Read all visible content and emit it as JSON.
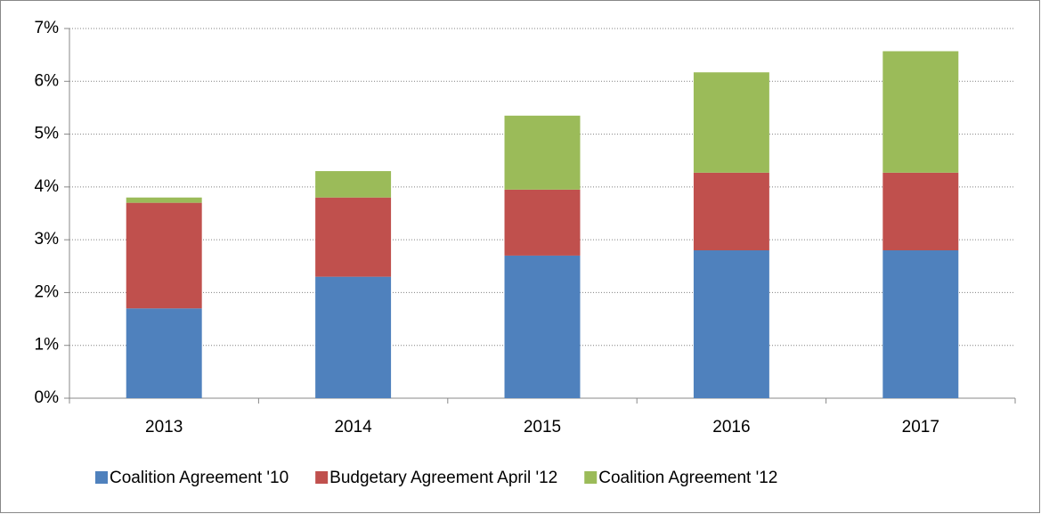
{
  "chart_data": {
    "type": "stacked-bar",
    "categories": [
      "2013",
      "2014",
      "2015",
      "2016",
      "2017"
    ],
    "series": [
      {
        "name": "Coalition Agreement '10",
        "color": "#4f81bd",
        "values": [
          1.7,
          2.3,
          2.7,
          2.8,
          2.8
        ]
      },
      {
        "name": "Budgetary Agreement April '12",
        "color": "#c0504d",
        "values": [
          2.0,
          1.5,
          1.25,
          1.47,
          1.47
        ]
      },
      {
        "name": "Coalition Agreement '12",
        "color": "#9bbb59",
        "values": [
          0.1,
          0.5,
          1.4,
          1.9,
          2.3
        ]
      }
    ],
    "ylim": [
      0,
      7
    ],
    "yticks": [
      {
        "value": 0,
        "label": "0%"
      },
      {
        "value": 1,
        "label": "1%"
      },
      {
        "value": 2,
        "label": "2%"
      },
      {
        "value": 3,
        "label": "3%"
      },
      {
        "value": 4,
        "label": "4%"
      },
      {
        "value": 5,
        "label": "5%"
      },
      {
        "value": 6,
        "label": "6%"
      },
      {
        "value": 7,
        "label": "7%"
      }
    ],
    "grid": true,
    "legend": "bottom"
  }
}
